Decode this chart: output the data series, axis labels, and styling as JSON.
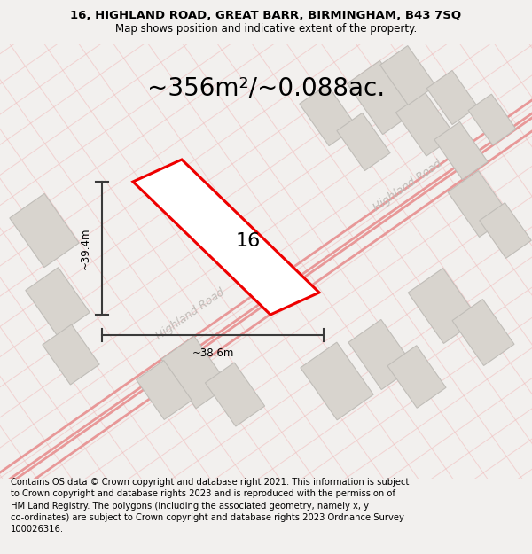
{
  "title_line1": "16, HIGHLAND ROAD, GREAT BARR, BIRMINGHAM, B43 7SQ",
  "title_line2": "Map shows position and indicative extent of the property.",
  "area_text": "~356m²/~0.088ac.",
  "dim_width": "~38.6m",
  "dim_height": "~39.4m",
  "property_label": "16",
  "footer_text": "Contains OS data © Crown copyright and database right 2021. This information is subject to Crown copyright and database rights 2023 and is reproduced with the permission of HM Land Registry. The polygons (including the associated geometry, namely x, y co-ordinates) are subject to Crown copyright and database rights 2023 Ordnance Survey 100026316.",
  "bg_color": "#f2f0ee",
  "map_bg": "#f5f3f0",
  "road_color": "#f0b8b8",
  "road_color_thick": "#e89898",
  "building_color": "#d8d4ce",
  "building_edge_color": "#c0bdb8",
  "highlight_color": "#ee0000",
  "title_fontsize": 9.5,
  "subtitle_fontsize": 8.5,
  "area_fontsize": 20,
  "label_fontsize": 16,
  "footer_fontsize": 7.2,
  "road_label_color": "#c0bcb8",
  "road_label_fontsize": 9
}
